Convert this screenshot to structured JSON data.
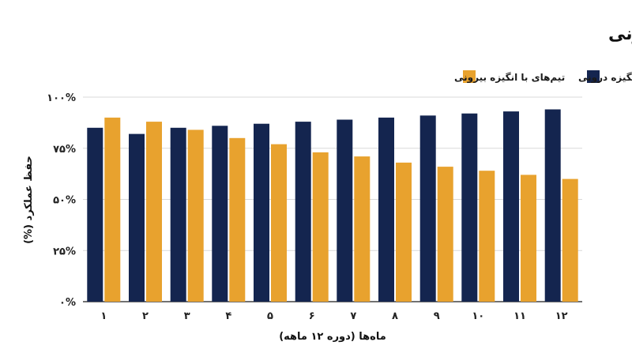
{
  "chart_data": {
    "type": "bar",
    "title": "مقایسه حفظ عملکرد بلندمدت: تیم‌های با انگیزه درونی در مقابل بیرونی",
    "xlabel": "ماه‌ها (دوره ۱۲ ماهه)",
    "ylabel": "حفظ عملکرد (%)",
    "categories": [
      "۱",
      "۲",
      "۳",
      "۴",
      "۵",
      "۶",
      "۷",
      "۸",
      "۹",
      "۱۰",
      "۱۱",
      "۱۲"
    ],
    "y_ticks": [
      "۰%",
      "۲۵%",
      "۵۰%",
      "۷۵%",
      "۱۰۰%"
    ],
    "ylim": [
      0,
      100
    ],
    "grid": true,
    "legend_position": "top-right",
    "series": [
      {
        "name": "تیم‌های با انگیزه درونی",
        "color": "#14254F",
        "values": [
          85,
          82,
          85,
          86,
          87,
          88,
          89,
          90,
          91,
          92,
          93,
          94
        ]
      },
      {
        "name": "تیم‌های با انگیزه بیرونی",
        "color": "#E8A22E",
        "values": [
          90,
          88,
          84,
          80,
          77,
          73,
          71,
          68,
          66,
          64,
          62,
          60
        ]
      }
    ]
  }
}
